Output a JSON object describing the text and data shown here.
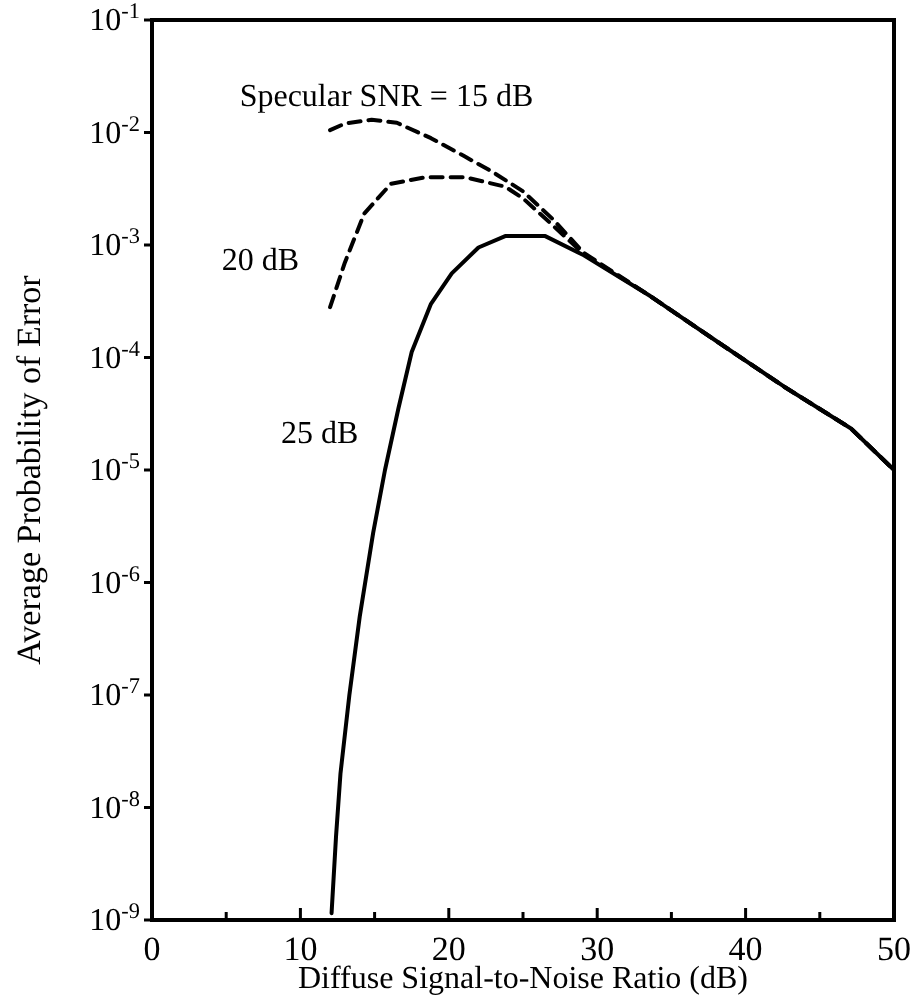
{
  "chart_data": {
    "type": "line",
    "xlabel": "Diffuse Signal-to-Noise Ratio (dB)",
    "ylabel": "Average Probability of Error",
    "log": "y",
    "xlim": [
      0,
      50
    ],
    "xticks": [
      0,
      {
        "value": 5,
        "label": null
      },
      10,
      {
        "value": 15,
        "label": null
      },
      20,
      {
        "value": 25,
        "label": null
      },
      30,
      {
        "value": 35,
        "label": null
      },
      40,
      {
        "value": 45,
        "label": null
      },
      50
    ],
    "ylim": [
      1e-09,
      0.1
    ],
    "yticks": [
      {
        "value": 1e-09,
        "label": "10$^{-9}$"
      },
      {
        "value": 1e-08,
        "label": "10$^{-8}$"
      },
      {
        "value": 1e-07,
        "label": "10$^{-7}$"
      },
      {
        "value": 1e-06,
        "label": "10$^{-6}$"
      },
      {
        "value": 1e-05,
        "label": "10$^{-5}$"
      },
      {
        "value": 0.0001,
        "label": "10$^{-4}$"
      },
      {
        "value": 0.001,
        "label": "10$^{-3}$"
      },
      {
        "value": 0.01,
        "label": "10$^{-2}$"
      },
      {
        "value": 0.1,
        "label": "10$^{-1}$"
      }
    ],
    "grid": false,
    "marker": "none",
    "series": [
      {
        "color": "#000000",
        "line_style": "dashed",
        "x": [
          12,
          13,
          14.8,
          16.5,
          18.8,
          21,
          22.9,
          25,
          27,
          29.1,
          33.6,
          38.1,
          42.6,
          47.1,
          50
        ],
        "values": [
          0.0105,
          0.012,
          0.013,
          0.0122,
          0.0089,
          0.0062,
          0.0045,
          0.003,
          0.0017,
          0.00085,
          0.00035,
          0.000138,
          5.5e-05,
          2.34e-05,
          1e-05
        ]
      },
      {
        "color": "#000000",
        "line_style": "dashed",
        "x": [
          12,
          13,
          14.3,
          16.1,
          18.4,
          21.1,
          23.8,
          25,
          27,
          29.1,
          33.6,
          38.1,
          42.6,
          47.1,
          50
        ],
        "values": [
          0.00028,
          0.0007,
          0.0019,
          0.0035,
          0.004,
          0.004,
          0.0033,
          0.0026,
          0.0015,
          0.00083,
          0.00035,
          0.000138,
          5.5e-05,
          2.34e-05,
          1e-05
        ]
      },
      {
        "color": "#000000",
        "line_style": "solid",
        "x": [
          12.1,
          12.4,
          12.7,
          13.3,
          14,
          14.9,
          15.7,
          16.6,
          17.5,
          18.8,
          20.2,
          22,
          23.8,
          26.5,
          29.1,
          33.6,
          38.1,
          42.6,
          47.1,
          50
        ],
        "values": [
          1.15e-09,
          5.5e-09,
          2e-08,
          1e-07,
          5e-07,
          2.75e-06,
          1e-05,
          3.5e-05,
          0.000112,
          0.0003,
          0.00056,
          0.00095,
          0.0012,
          0.0012,
          0.00081,
          0.00035,
          0.000138,
          5.5e-05,
          2.34e-05,
          1e-05
        ]
      }
    ],
    "annotations": [
      "Specular SNR = 15 dB",
      "20 dB",
      "25 dB"
    ]
  }
}
